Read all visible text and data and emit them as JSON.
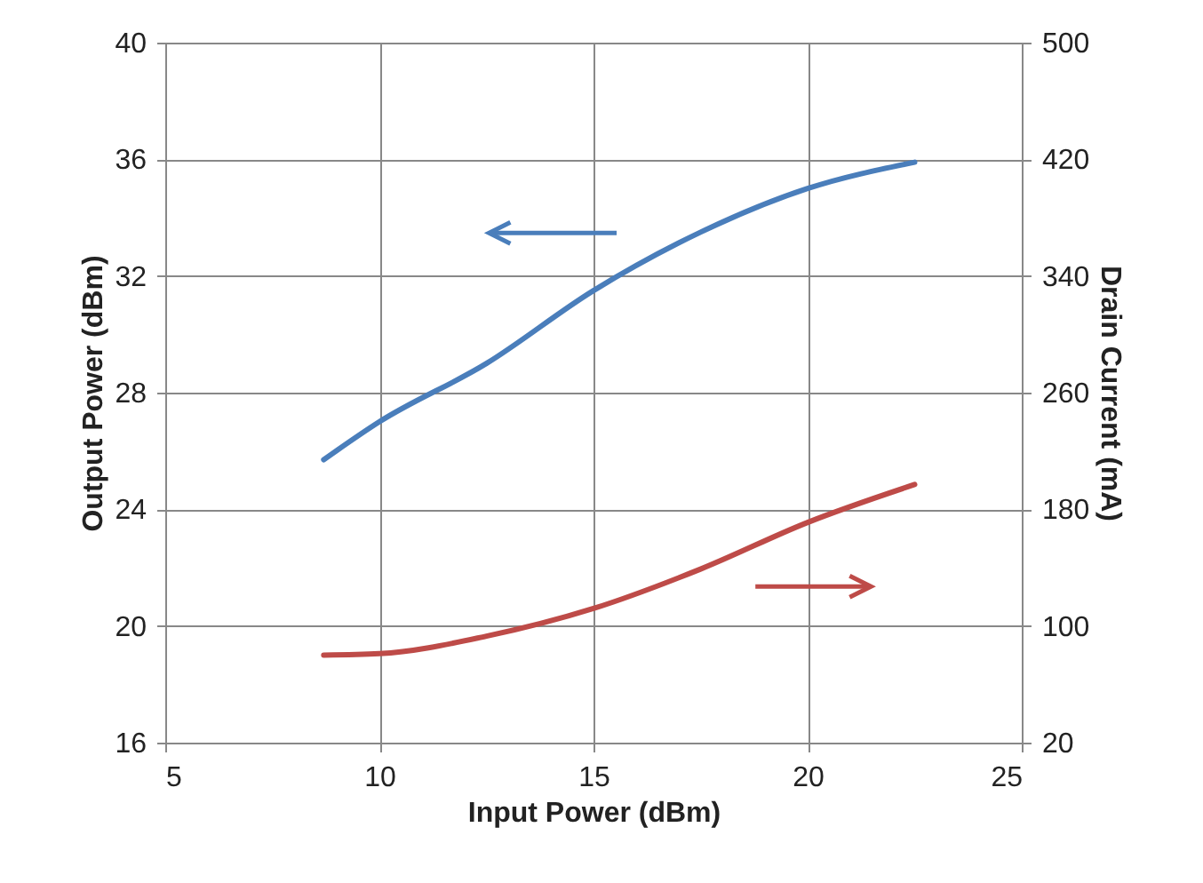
{
  "chart_data": {
    "type": "line",
    "xlabel": "Input Power (dBm)",
    "ylabel": "Output Power (dBm)",
    "y2label": "Drain Current (mA)",
    "xlim": [
      5,
      25
    ],
    "xticks": [
      5,
      10,
      15,
      20,
      25
    ],
    "ylim": [
      16,
      40
    ],
    "yticks": [
      16,
      20,
      24,
      28,
      32,
      36,
      40
    ],
    "y2lim": [
      20,
      500
    ],
    "y2ticks": [
      20,
      100,
      180,
      260,
      340,
      420,
      500
    ],
    "grid": true,
    "series": [
      {
        "color": "#4a7ebb",
        "x": [
          8.7,
          10,
          12.5,
          15,
          17.5,
          20,
          22.5
        ],
        "values": [
          25.7,
          27.0,
          29.0,
          31.5,
          33.5,
          35.0,
          35.9
        ]
      },
      {
        "color": "#be4b48",
        "axis": "y2",
        "x": [
          8.7,
          10,
          12.5,
          15,
          17.5,
          20,
          22.5
        ],
        "values": [
          80,
          81,
          93,
          112,
          139,
          171,
          197
        ]
      }
    ]
  }
}
